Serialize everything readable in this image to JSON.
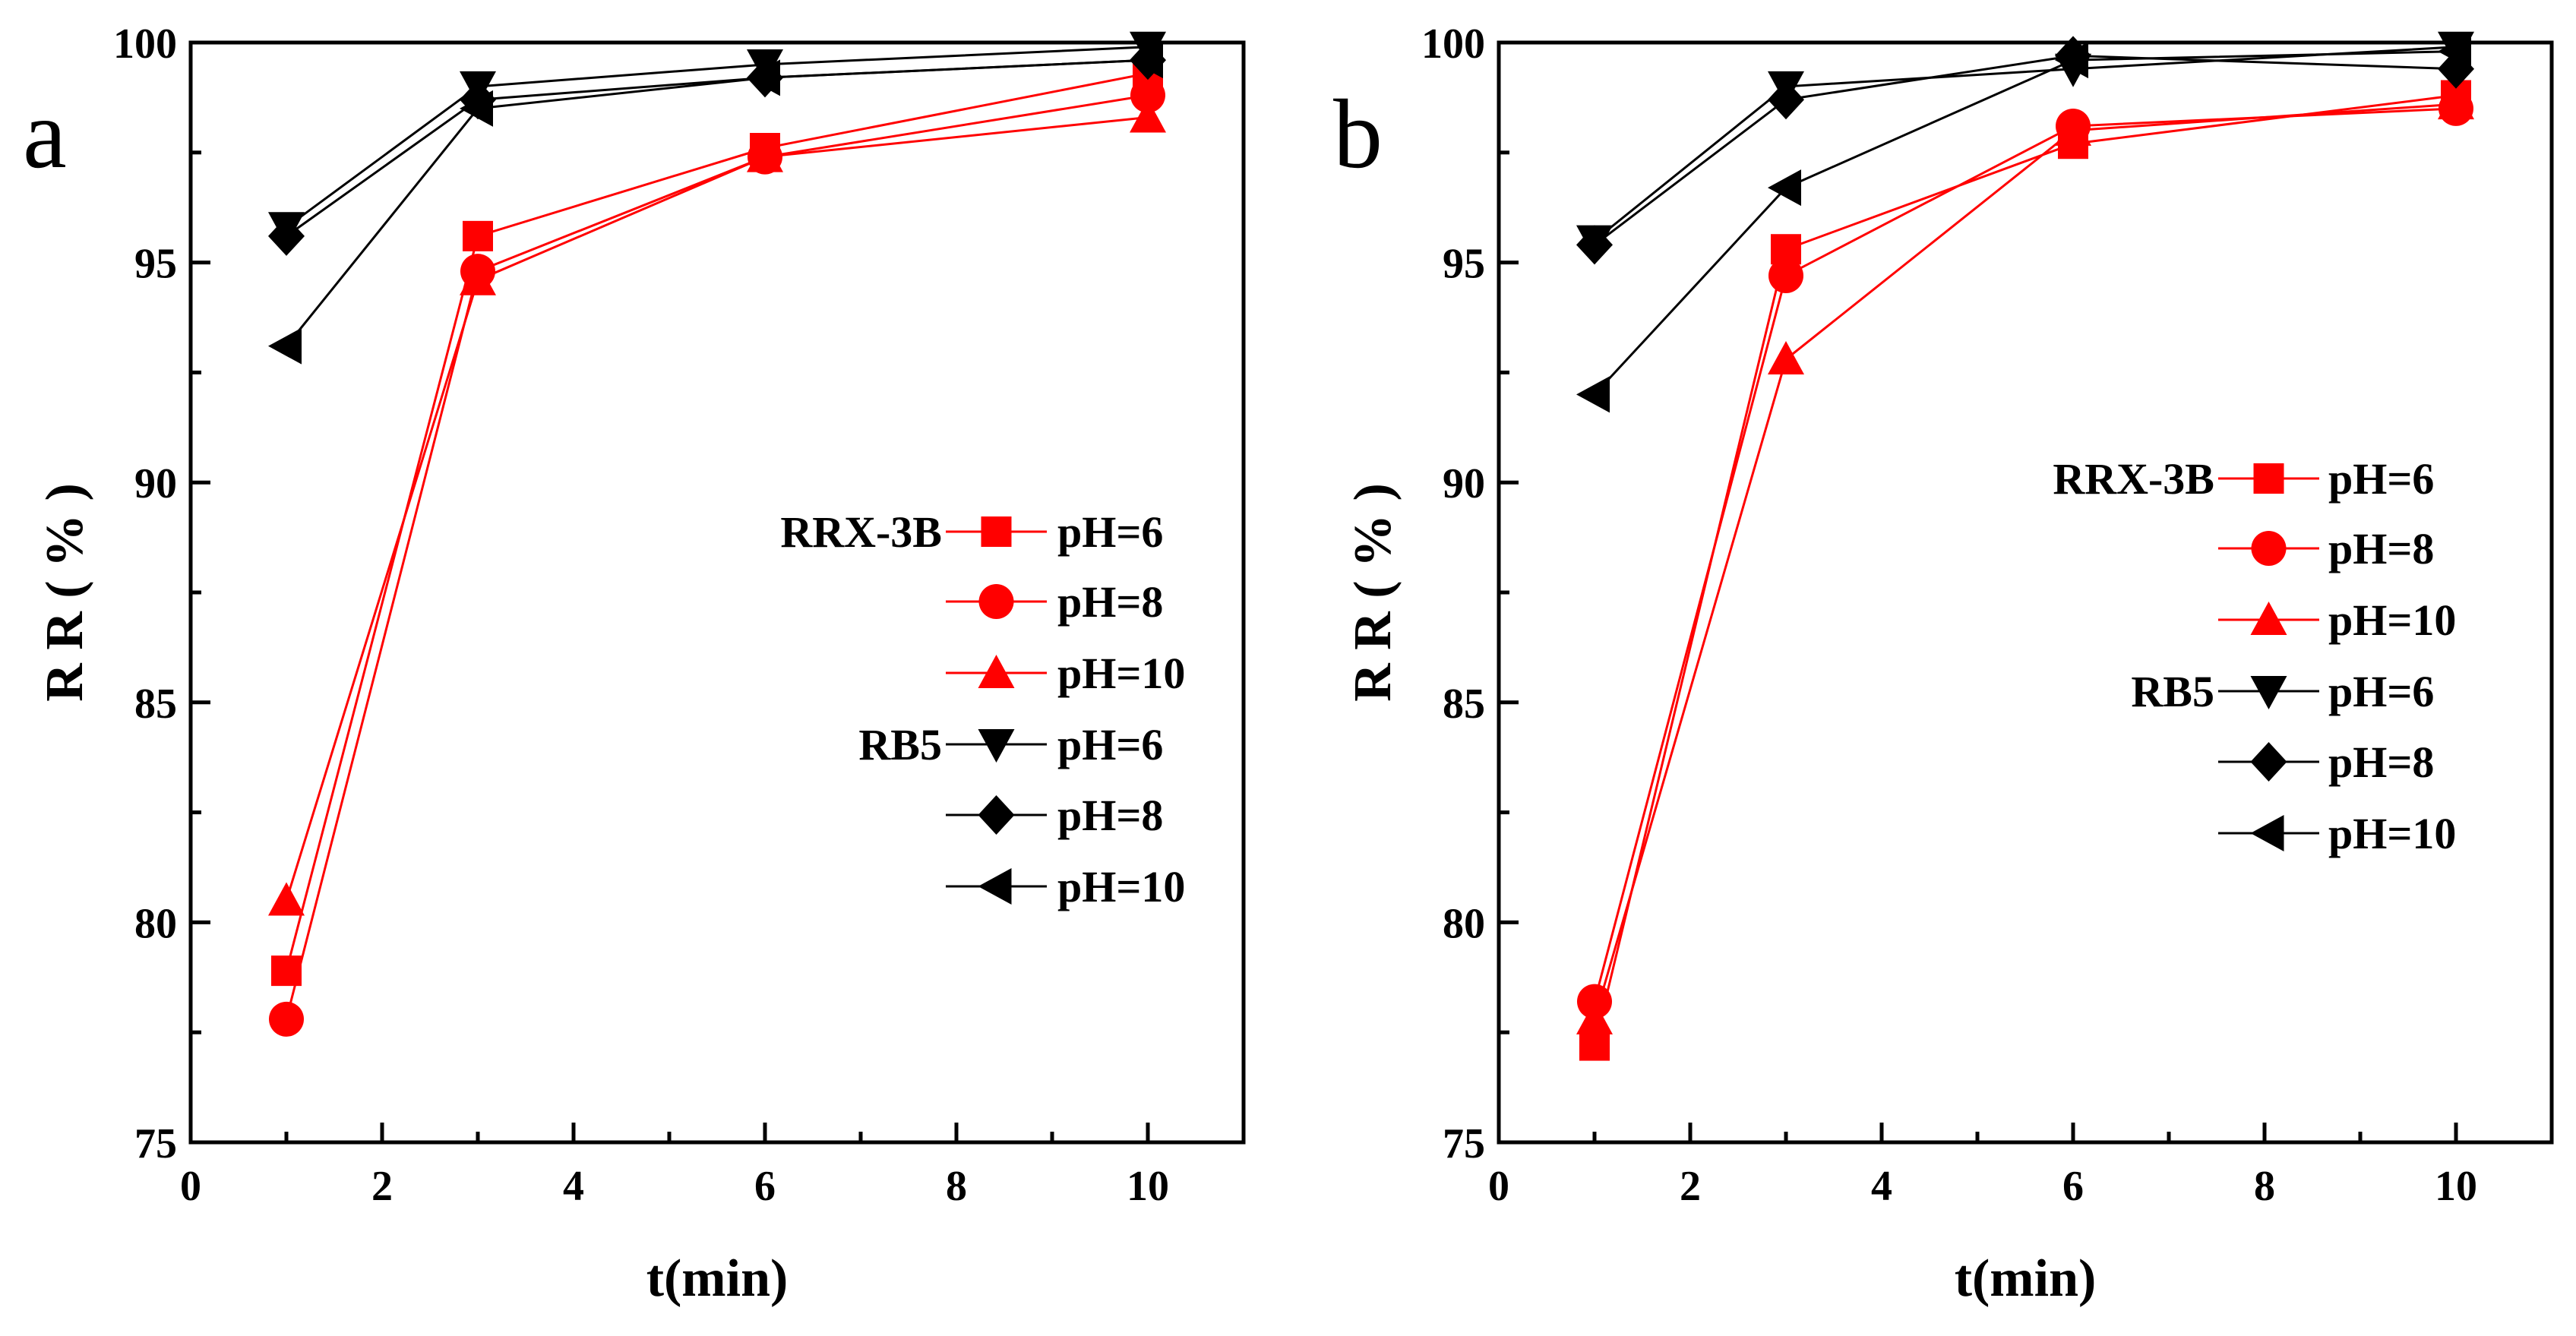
{
  "colors": {
    "red": "#ff0000",
    "black": "#000000"
  },
  "chart_data": [
    {
      "type": "line",
      "panel_label": "a",
      "xlabel": "t(min)",
      "ylabel": "R R ( % )",
      "xlim": [
        0,
        11
      ],
      "ylim": [
        75,
        100
      ],
      "x_ticks": [
        "0",
        "2",
        "4",
        "6",
        "8",
        "10"
      ],
      "y_ticks": [
        "75",
        "80",
        "85",
        "90",
        "95",
        "100"
      ],
      "x": [
        1,
        3,
        6,
        10
      ],
      "legend_position": "center-right",
      "series": [
        {
          "group": "RRX-3B",
          "name": "pH=6",
          "marker": "square",
          "color": "red",
          "values": [
            78.9,
            95.6,
            97.6,
            99.3
          ]
        },
        {
          "group": "",
          "name": "pH=8",
          "marker": "circle",
          "color": "red",
          "values": [
            77.8,
            94.8,
            97.4,
            98.8
          ]
        },
        {
          "group": "",
          "name": "pH=10",
          "marker": "triangle-up",
          "color": "red",
          "values": [
            80.5,
            94.6,
            97.4,
            98.3
          ]
        },
        {
          "group": "RB5",
          "name": "pH=6",
          "marker": "triangle-down",
          "color": "black",
          "values": [
            95.8,
            99.0,
            99.5,
            99.9
          ]
        },
        {
          "group": "",
          "name": "pH=8",
          "marker": "diamond",
          "color": "black",
          "values": [
            95.6,
            98.7,
            99.2,
            99.6
          ]
        },
        {
          "group": "",
          "name": "pH=10",
          "marker": "triangle-left",
          "color": "black",
          "values": [
            93.1,
            98.5,
            99.2,
            99.6
          ]
        }
      ]
    },
    {
      "type": "line",
      "panel_label": "b",
      "xlabel": "t(min)",
      "ylabel": "R R ( % )",
      "xlim": [
        0,
        11
      ],
      "ylim": [
        75,
        100
      ],
      "x_ticks": [
        "0",
        "2",
        "4",
        "6",
        "8",
        "10"
      ],
      "y_ticks": [
        "75",
        "80",
        "85",
        "90",
        "95",
        "100"
      ],
      "x": [
        1,
        3,
        6,
        10
      ],
      "legend_position": "center-right",
      "series": [
        {
          "group": "RRX-3B",
          "name": "pH=6",
          "marker": "square",
          "color": "red",
          "values": [
            77.2,
            95.3,
            97.7,
            98.8
          ]
        },
        {
          "group": "",
          "name": "pH=8",
          "marker": "circle",
          "color": "red",
          "values": [
            78.2,
            94.7,
            98.1,
            98.5
          ]
        },
        {
          "group": "",
          "name": "pH=10",
          "marker": "triangle-up",
          "color": "red",
          "values": [
            77.8,
            92.8,
            98.0,
            98.6
          ]
        },
        {
          "group": "RB5",
          "name": "pH=6",
          "marker": "triangle-down",
          "color": "black",
          "values": [
            95.5,
            99.0,
            99.4,
            99.9
          ]
        },
        {
          "group": "",
          "name": "pH=8",
          "marker": "diamond",
          "color": "black",
          "values": [
            95.4,
            98.7,
            99.7,
            99.4
          ]
        },
        {
          "group": "",
          "name": "pH=10",
          "marker": "triangle-left",
          "color": "black",
          "values": [
            92.0,
            96.7,
            99.6,
            99.8
          ]
        }
      ]
    }
  ]
}
